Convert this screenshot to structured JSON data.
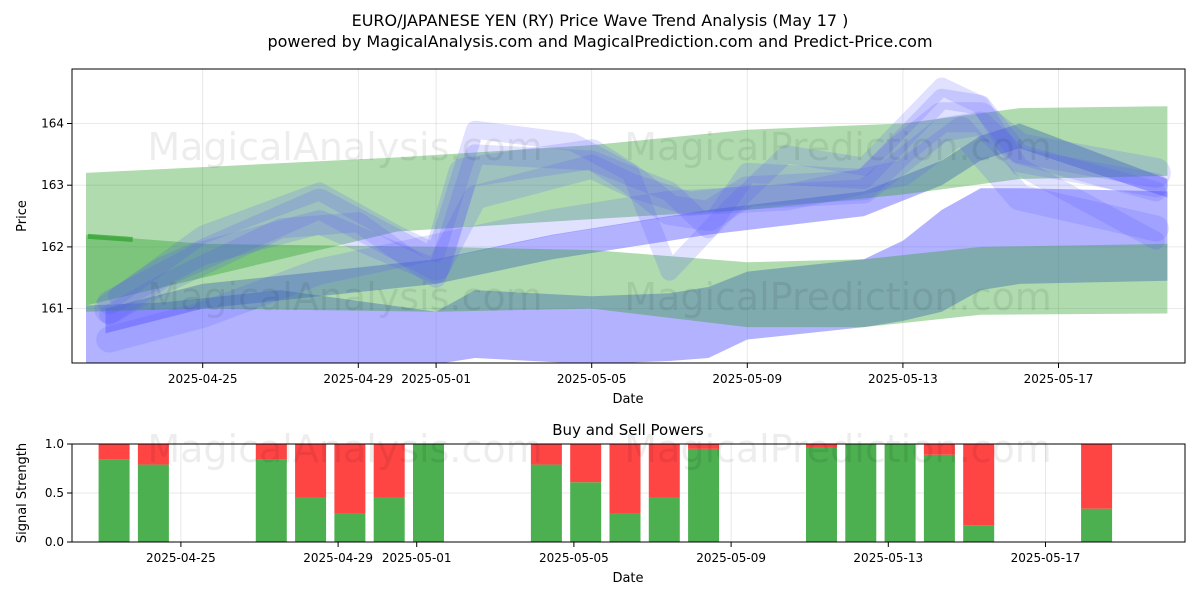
{
  "title": {
    "line1": "EURO/JAPANESE YEN (RY) Price Wave Trend Analysis (May 17 )",
    "line2": "powered by MagicalAnalysis.com and MagicalPrediction.com and Predict-Price.com"
  },
  "watermarks": [
    "MagicalAnalysis.com",
    "MagicalPrediction.com"
  ],
  "colors": {
    "green_band": "#2ca02c",
    "blue_band": "#5555ff",
    "buy": "#4caf50",
    "sell": "#ff4444"
  },
  "chart_data": [
    {
      "type": "area",
      "title": "",
      "xlabel": "Date",
      "ylabel": "Price",
      "x_start": "2025-04-22",
      "x_end": "2025-05-19",
      "ylim": [
        160.1,
        164.9
      ],
      "x_ticks": [
        {
          "day": 3,
          "label": "2025-04-25"
        },
        {
          "day": 7,
          "label": "2025-04-29"
        },
        {
          "day": 9,
          "label": "2025-05-01"
        },
        {
          "day": 13,
          "label": "2025-05-05"
        },
        {
          "day": 17,
          "label": "2025-05-09"
        },
        {
          "day": 21,
          "label": "2025-05-13"
        },
        {
          "day": 25,
          "label": "2025-05-17"
        }
      ],
      "y_ticks": [
        {
          "value": 161,
          "label": "161"
        },
        {
          "value": 162,
          "label": "162"
        },
        {
          "value": 163,
          "label": "163"
        },
        {
          "value": 164,
          "label": "164"
        }
      ],
      "green_bands": [
        {
          "name": "green-band-upper",
          "x": [
            0,
            8,
            13,
            17,
            21,
            24,
            27.8
          ],
          "upper": [
            163.2,
            163.45,
            163.65,
            163.9,
            164.0,
            164.25,
            164.28
          ],
          "lower": [
            161.05,
            162.25,
            162.45,
            162.6,
            162.85,
            163.1,
            163.15
          ]
        },
        {
          "name": "green-band-middle",
          "x": [
            0,
            3,
            9,
            13,
            17,
            20,
            23,
            27.8
          ],
          "upper": [
            162.2,
            162.05,
            162.0,
            161.95,
            161.75,
            161.8,
            162.0,
            162.05
          ],
          "lower": [
            160.95,
            161.0,
            160.95,
            161.0,
            160.7,
            160.7,
            160.9,
            160.92
          ]
        }
      ],
      "blue_bands": [
        {
          "name": "blue-band-lower",
          "x": [
            0,
            2,
            5,
            9,
            10,
            13,
            15,
            16,
            17,
            20,
            21,
            22,
            23,
            24,
            27.8
          ],
          "upper": [
            161.05,
            161.1,
            161.3,
            160.95,
            161.3,
            161.2,
            161.25,
            161.35,
            161.6,
            161.8,
            162.1,
            162.6,
            162.95,
            162.95,
            162.9
          ],
          "lower": [
            160.1,
            160.1,
            160.1,
            160.1,
            160.2,
            160.1,
            160.15,
            160.2,
            160.5,
            160.7,
            160.8,
            160.95,
            161.3,
            161.4,
            161.45
          ]
        },
        {
          "name": "blue-band-rising",
          "x": [
            0.5,
            3,
            6,
            9,
            12,
            16,
            20,
            22,
            23,
            24,
            27.8
          ],
          "upper": [
            161.0,
            161.4,
            161.6,
            161.8,
            162.2,
            162.6,
            162.9,
            163.4,
            163.8,
            164.0,
            163.1
          ],
          "lower": [
            160.6,
            161.0,
            161.2,
            161.4,
            161.8,
            162.2,
            162.5,
            163.0,
            163.4,
            163.6,
            162.8
          ]
        }
      ],
      "blue_waves": [
        {
          "name": "wave-main",
          "width": 30,
          "points": [
            [
              0.6,
              161.0
            ],
            [
              2,
              161.6
            ],
            [
              6,
              162.7
            ],
            [
              9,
              161.7
            ],
            [
              9.7,
              163.2
            ],
            [
              13,
              163.5
            ],
            [
              14,
              163.1
            ],
            [
              15,
              162.6
            ],
            [
              16,
              162.5
            ],
            [
              17,
              162.9
            ],
            [
              20,
              163.0
            ],
            [
              21,
              163.6
            ],
            [
              22,
              164.1
            ],
            [
              23,
              164.1
            ],
            [
              24,
              163.6
            ],
            [
              27.5,
              163.2
            ]
          ]
        },
        {
          "name": "wave-2",
          "width": 24,
          "points": [
            [
              0.6,
              161.1
            ],
            [
              3,
              161.9
            ],
            [
              6,
              162.4
            ],
            [
              9,
              161.6
            ],
            [
              10,
              162.8
            ],
            [
              13,
              163.3
            ],
            [
              14,
              163.0
            ],
            [
              15.5,
              162.7
            ],
            [
              17,
              162.8
            ],
            [
              20,
              162.9
            ],
            [
              22,
              163.9
            ],
            [
              23,
              164.0
            ],
            [
              24,
              163.4
            ],
            [
              27.5,
              163.0
            ]
          ]
        },
        {
          "name": "wave-3",
          "width": 20,
          "points": [
            [
              0.6,
              160.9
            ],
            [
              2,
              161.4
            ],
            [
              5,
              162.3
            ],
            [
              7,
              162.4
            ],
            [
              9,
              161.5
            ],
            [
              10,
              163.5
            ],
            [
              13,
              163.4
            ],
            [
              15,
              162.9
            ],
            [
              16,
              162.3
            ],
            [
              17,
              163.2
            ],
            [
              20,
              163.1
            ],
            [
              22,
              164.4
            ],
            [
              23,
              164.3
            ],
            [
              24,
              163.5
            ],
            [
              27.5,
              162.9
            ]
          ]
        },
        {
          "name": "wave-4",
          "width": 26,
          "points": [
            [
              0.6,
              160.5
            ],
            [
              3,
              160.9
            ],
            [
              6,
              161.6
            ],
            [
              9,
              162.0
            ],
            [
              12,
              162.4
            ],
            [
              15,
              162.7
            ],
            [
              18,
              162.8
            ],
            [
              21,
              163.2
            ],
            [
              22.5,
              163.9
            ],
            [
              24,
              162.8
            ],
            [
              27.5,
              162.3
            ]
          ]
        },
        {
          "name": "wave-5",
          "width": 18,
          "points": [
            [
              0.8,
              161.2
            ],
            [
              3,
              162.2
            ],
            [
              6,
              162.9
            ],
            [
              8,
              162.2
            ],
            [
              9,
              161.9
            ],
            [
              10,
              163.9
            ],
            [
              12.5,
              163.7
            ],
            [
              14,
              163.2
            ],
            [
              15,
              161.6
            ],
            [
              16.5,
              162.6
            ],
            [
              18,
              163.5
            ],
            [
              20,
              163.3
            ],
            [
              22,
              164.6
            ],
            [
              23,
              164.3
            ],
            [
              24,
              163.3
            ],
            [
              27.5,
              162.1
            ]
          ]
        }
      ]
    },
    {
      "type": "bar",
      "title": "Buy and Sell Powers",
      "xlabel": "Date",
      "ylabel": "Signal Strength",
      "ylim": [
        0,
        1
      ],
      "x_ticks": [
        {
          "day": 3,
          "label": "2025-04-25"
        },
        {
          "day": 7,
          "label": "2025-04-29"
        },
        {
          "day": 9,
          "label": "2025-05-01"
        },
        {
          "day": 13,
          "label": "2025-05-05"
        },
        {
          "day": 17,
          "label": "2025-05-09"
        },
        {
          "day": 21,
          "label": "2025-05-13"
        },
        {
          "day": 25,
          "label": "2025-05-17"
        }
      ],
      "y_ticks": [
        {
          "value": 0,
          "label": "0.0"
        },
        {
          "value": 0.5,
          "label": "0.5"
        },
        {
          "value": 1,
          "label": "1.0"
        }
      ],
      "bars": [
        {
          "day": 1.3,
          "buy": 0.84
        },
        {
          "day": 2.3,
          "buy": 0.79
        },
        {
          "day": 5.3,
          "buy": 0.84
        },
        {
          "day": 6.3,
          "buy": 0.45
        },
        {
          "day": 7.3,
          "buy": 0.29
        },
        {
          "day": 8.3,
          "buy": 0.45
        },
        {
          "day": 9.3,
          "buy": 1.0
        },
        {
          "day": 12.3,
          "buy": 0.79
        },
        {
          "day": 13.3,
          "buy": 0.61
        },
        {
          "day": 14.3,
          "buy": 0.29
        },
        {
          "day": 15.3,
          "buy": 0.45
        },
        {
          "day": 16.3,
          "buy": 0.95
        },
        {
          "day": 19.3,
          "buy": 0.96
        },
        {
          "day": 20.3,
          "buy": 1.0
        },
        {
          "day": 21.3,
          "buy": 1.0
        },
        {
          "day": 22.3,
          "buy": 0.89
        },
        {
          "day": 23.3,
          "buy": 0.17
        },
        {
          "day": 26.3,
          "buy": 0.34
        }
      ]
    }
  ]
}
